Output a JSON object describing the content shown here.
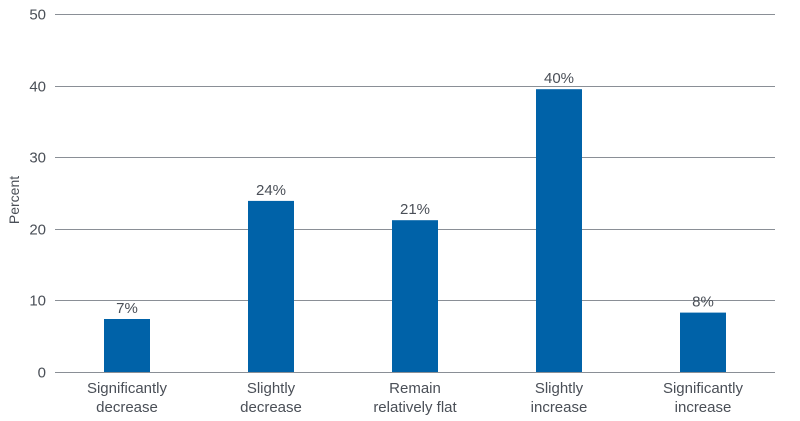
{
  "chart_data": {
    "type": "bar",
    "categories": [
      [
        "Significantly",
        "decrease"
      ],
      [
        "Slightly",
        "decrease"
      ],
      [
        "Remain",
        "relatively flat"
      ],
      [
        "Slightly",
        "increase"
      ],
      [
        "Significantly",
        "increase"
      ]
    ],
    "values": [
      7.4,
      23.9,
      21.2,
      39.5,
      8.3
    ],
    "data_labels": [
      "7%",
      "24%",
      "21%",
      "40%",
      "8%"
    ],
    "title": "",
    "xlabel": "",
    "ylabel": "Percent",
    "ylim": [
      0,
      50
    ],
    "yticks": [
      0,
      10,
      20,
      30,
      40,
      50
    ],
    "grid": true,
    "legend": "none",
    "colors": {
      "bar": "#0062a8",
      "grid": "#8a8f96",
      "text": "#4a4f57"
    }
  }
}
